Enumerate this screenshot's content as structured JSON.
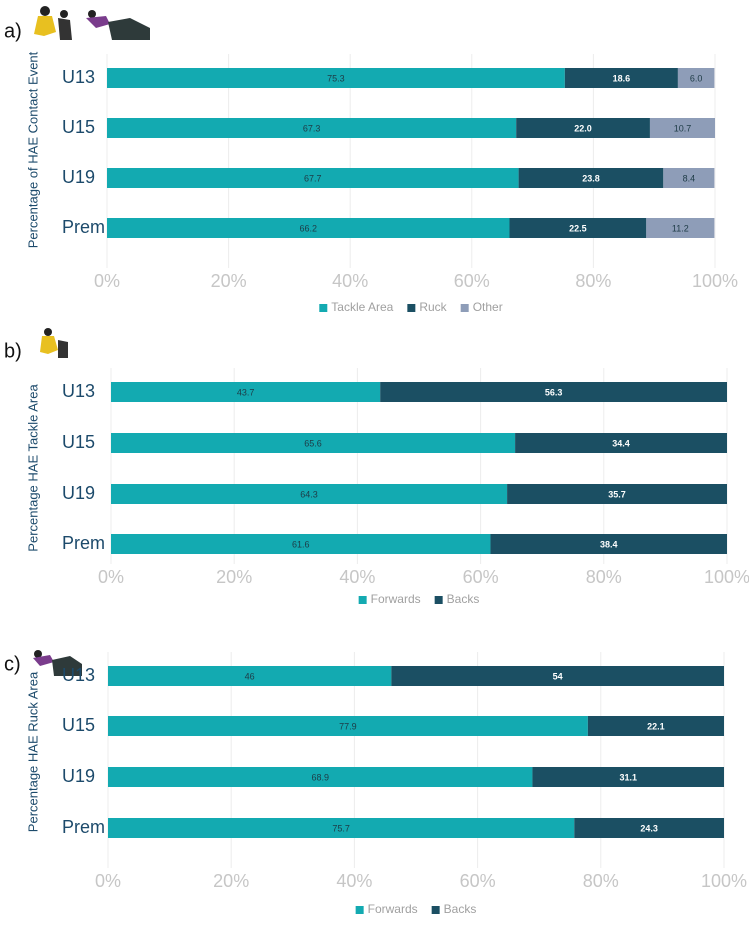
{
  "chart_data": [
    {
      "type": "bar",
      "orientation": "horizontal",
      "stacked": true,
      "label": "a)",
      "ylabel": "Percentage of HAE Contact Event",
      "categories": [
        "U13",
        "U15",
        "U19",
        "Prem"
      ],
      "series": [
        {
          "name": "Tackle Area",
          "color": "#13aab1",
          "values": [
            75.3,
            67.3,
            67.7,
            66.2
          ],
          "value_labels": [
            "75.3",
            "67.3",
            "67.7",
            "66.2"
          ]
        },
        {
          "name": "Ruck",
          "color": "#1b4f63",
          "values": [
            18.6,
            22.0,
            23.8,
            22.5
          ],
          "value_labels": [
            "18.6",
            "22.0",
            "23.8",
            "22.5"
          ]
        },
        {
          "name": "Other",
          "color": "#8e9db8",
          "values": [
            6.0,
            10.7,
            8.4,
            11.2
          ],
          "value_labels": [
            "6.0",
            "10.7",
            "8.4",
            "11.2"
          ]
        }
      ],
      "xlim": [
        0,
        100
      ],
      "xticks": [
        {
          "value": 0,
          "label": "0%"
        },
        {
          "value": 20,
          "label": "20%"
        },
        {
          "value": 40,
          "label": "40%"
        },
        {
          "value": 60,
          "label": "60%"
        },
        {
          "value": 80,
          "label": "80%"
        },
        {
          "value": 100,
          "label": "100%"
        }
      ],
      "grid": true,
      "legend": "bottom"
    },
    {
      "type": "bar",
      "orientation": "horizontal",
      "stacked": true,
      "label": "b)",
      "ylabel": "Percentage HAE Tackle Area",
      "categories": [
        "U13",
        "U15",
        "U19",
        "Prem"
      ],
      "series": [
        {
          "name": "Forwards",
          "color": "#13aab1",
          "values": [
            43.7,
            65.6,
            64.3,
            61.6
          ],
          "value_labels": [
            "43.7",
            "65.6",
            "64.3",
            "61.6"
          ]
        },
        {
          "name": "Backs",
          "color": "#1b4f63",
          "values": [
            56.3,
            34.4,
            35.7,
            38.4
          ],
          "value_labels": [
            "56.3",
            "34.4",
            "35.7",
            "38.4"
          ]
        }
      ],
      "xlim": [
        0,
        100
      ],
      "xticks": [
        {
          "value": 0,
          "label": "0%"
        },
        {
          "value": 20,
          "label": "20%"
        },
        {
          "value": 40,
          "label": "40%"
        },
        {
          "value": 60,
          "label": "60%"
        },
        {
          "value": 80,
          "label": "80%"
        },
        {
          "value": 100,
          "label": "100%"
        }
      ],
      "grid": true,
      "legend": "bottom"
    },
    {
      "type": "bar",
      "orientation": "horizontal",
      "stacked": true,
      "label": "c)",
      "ylabel": "Percentage HAE Ruck Area",
      "categories": [
        "U13",
        "U15",
        "U19",
        "Prem"
      ],
      "series": [
        {
          "name": "Forwards",
          "color": "#13aab1",
          "values": [
            46,
            77.9,
            68.9,
            75.7
          ],
          "value_labels": [
            "46",
            "77.9",
            "68.9",
            "75.7"
          ]
        },
        {
          "name": "Backs",
          "color": "#1b4f63",
          "values": [
            54,
            22.1,
            31.1,
            24.3
          ],
          "value_labels": [
            "54",
            "22.1",
            "31.1",
            "24.3"
          ]
        }
      ],
      "xlim": [
        0,
        100
      ],
      "xticks": [
        {
          "value": 0,
          "label": "0%"
        },
        {
          "value": 20,
          "label": "20%"
        },
        {
          "value": 40,
          "label": "40%"
        },
        {
          "value": 60,
          "label": "60%"
        },
        {
          "value": 80,
          "label": "80%"
        },
        {
          "value": 100,
          "label": "100%"
        }
      ],
      "grid": true,
      "legend": "bottom"
    }
  ]
}
